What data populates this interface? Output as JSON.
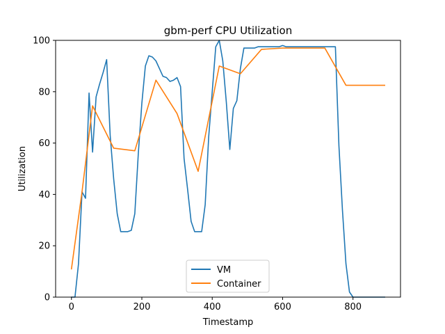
{
  "chart_data": {
    "type": "line",
    "title": "gbm-perf CPU Utilization",
    "xlabel": "Timestamp",
    "ylabel": "Utilization",
    "xlim": [
      -45,
      935
    ],
    "ylim": [
      0,
      100
    ],
    "xticks": [
      0,
      200,
      400,
      600,
      800
    ],
    "yticks": [
      0,
      20,
      40,
      60,
      80,
      100
    ],
    "grid": false,
    "legend_position": "bottom-center",
    "series": [
      {
        "name": "VM",
        "color": "#1f77b4",
        "points": [
          [
            0,
            0
          ],
          [
            10,
            0
          ],
          [
            20,
            13
          ],
          [
            30,
            41
          ],
          [
            40,
            38.5
          ],
          [
            50,
            79.5
          ],
          [
            60,
            56.5
          ],
          [
            70,
            78
          ],
          [
            80,
            83
          ],
          [
            90,
            87.5
          ],
          [
            100,
            92.5
          ],
          [
            110,
            63
          ],
          [
            120,
            46
          ],
          [
            130,
            32.5
          ],
          [
            140,
            25.5
          ],
          [
            150,
            25.5
          ],
          [
            160,
            25.5
          ],
          [
            170,
            26
          ],
          [
            180,
            32.5
          ],
          [
            190,
            56
          ],
          [
            200,
            75.5
          ],
          [
            210,
            90
          ],
          [
            220,
            94
          ],
          [
            230,
            93.5
          ],
          [
            240,
            92
          ],
          [
            250,
            89
          ],
          [
            260,
            86
          ],
          [
            270,
            85.5
          ],
          [
            280,
            84
          ],
          [
            290,
            84.5
          ],
          [
            300,
            85.5
          ],
          [
            310,
            82
          ],
          [
            320,
            54
          ],
          [
            330,
            42
          ],
          [
            340,
            29.5
          ],
          [
            350,
            25.5
          ],
          [
            360,
            25.5
          ],
          [
            370,
            25.5
          ],
          [
            380,
            36
          ],
          [
            390,
            62.5
          ],
          [
            400,
            80
          ],
          [
            410,
            97.5
          ],
          [
            420,
            100
          ],
          [
            430,
            92
          ],
          [
            440,
            76
          ],
          [
            450,
            57.5
          ],
          [
            460,
            73.5
          ],
          [
            470,
            76.5
          ],
          [
            480,
            89
          ],
          [
            490,
            97
          ],
          [
            500,
            97
          ],
          [
            510,
            97
          ],
          [
            520,
            97
          ],
          [
            530,
            97.5
          ],
          [
            540,
            97.5
          ],
          [
            550,
            97.5
          ],
          [
            560,
            97.5
          ],
          [
            570,
            97.5
          ],
          [
            580,
            97.5
          ],
          [
            590,
            97.5
          ],
          [
            600,
            98
          ],
          [
            610,
            97.5
          ],
          [
            620,
            97.5
          ],
          [
            630,
            97.5
          ],
          [
            640,
            97.5
          ],
          [
            650,
            97.5
          ],
          [
            660,
            97.5
          ],
          [
            670,
            97.5
          ],
          [
            680,
            97.5
          ],
          [
            690,
            97.5
          ],
          [
            700,
            97.5
          ],
          [
            710,
            97.5
          ],
          [
            720,
            97.5
          ],
          [
            730,
            97.5
          ],
          [
            740,
            97.5
          ],
          [
            750,
            97.5
          ],
          [
            760,
            59
          ],
          [
            770,
            34
          ],
          [
            780,
            13
          ],
          [
            790,
            2
          ],
          [
            800,
            0
          ],
          [
            810,
            0
          ],
          [
            820,
            0
          ],
          [
            830,
            0
          ],
          [
            840,
            0
          ],
          [
            850,
            0
          ],
          [
            860,
            0
          ],
          [
            870,
            0
          ],
          [
            880,
            0
          ],
          [
            890,
            0
          ]
        ]
      },
      {
        "name": "Container",
        "color": "#ff7f0e",
        "points": [
          [
            0,
            11
          ],
          [
            30,
            41
          ],
          [
            60,
            74.5
          ],
          [
            120,
            58
          ],
          [
            180,
            57
          ],
          [
            240,
            84.5
          ],
          [
            300,
            71.5
          ],
          [
            360,
            49
          ],
          [
            420,
            90
          ],
          [
            480,
            87
          ],
          [
            540,
            96.5
          ],
          [
            600,
            97
          ],
          [
            660,
            97
          ],
          [
            720,
            97
          ],
          [
            780,
            82.5
          ],
          [
            840,
            82.5
          ],
          [
            890,
            82.5
          ]
        ]
      }
    ]
  }
}
